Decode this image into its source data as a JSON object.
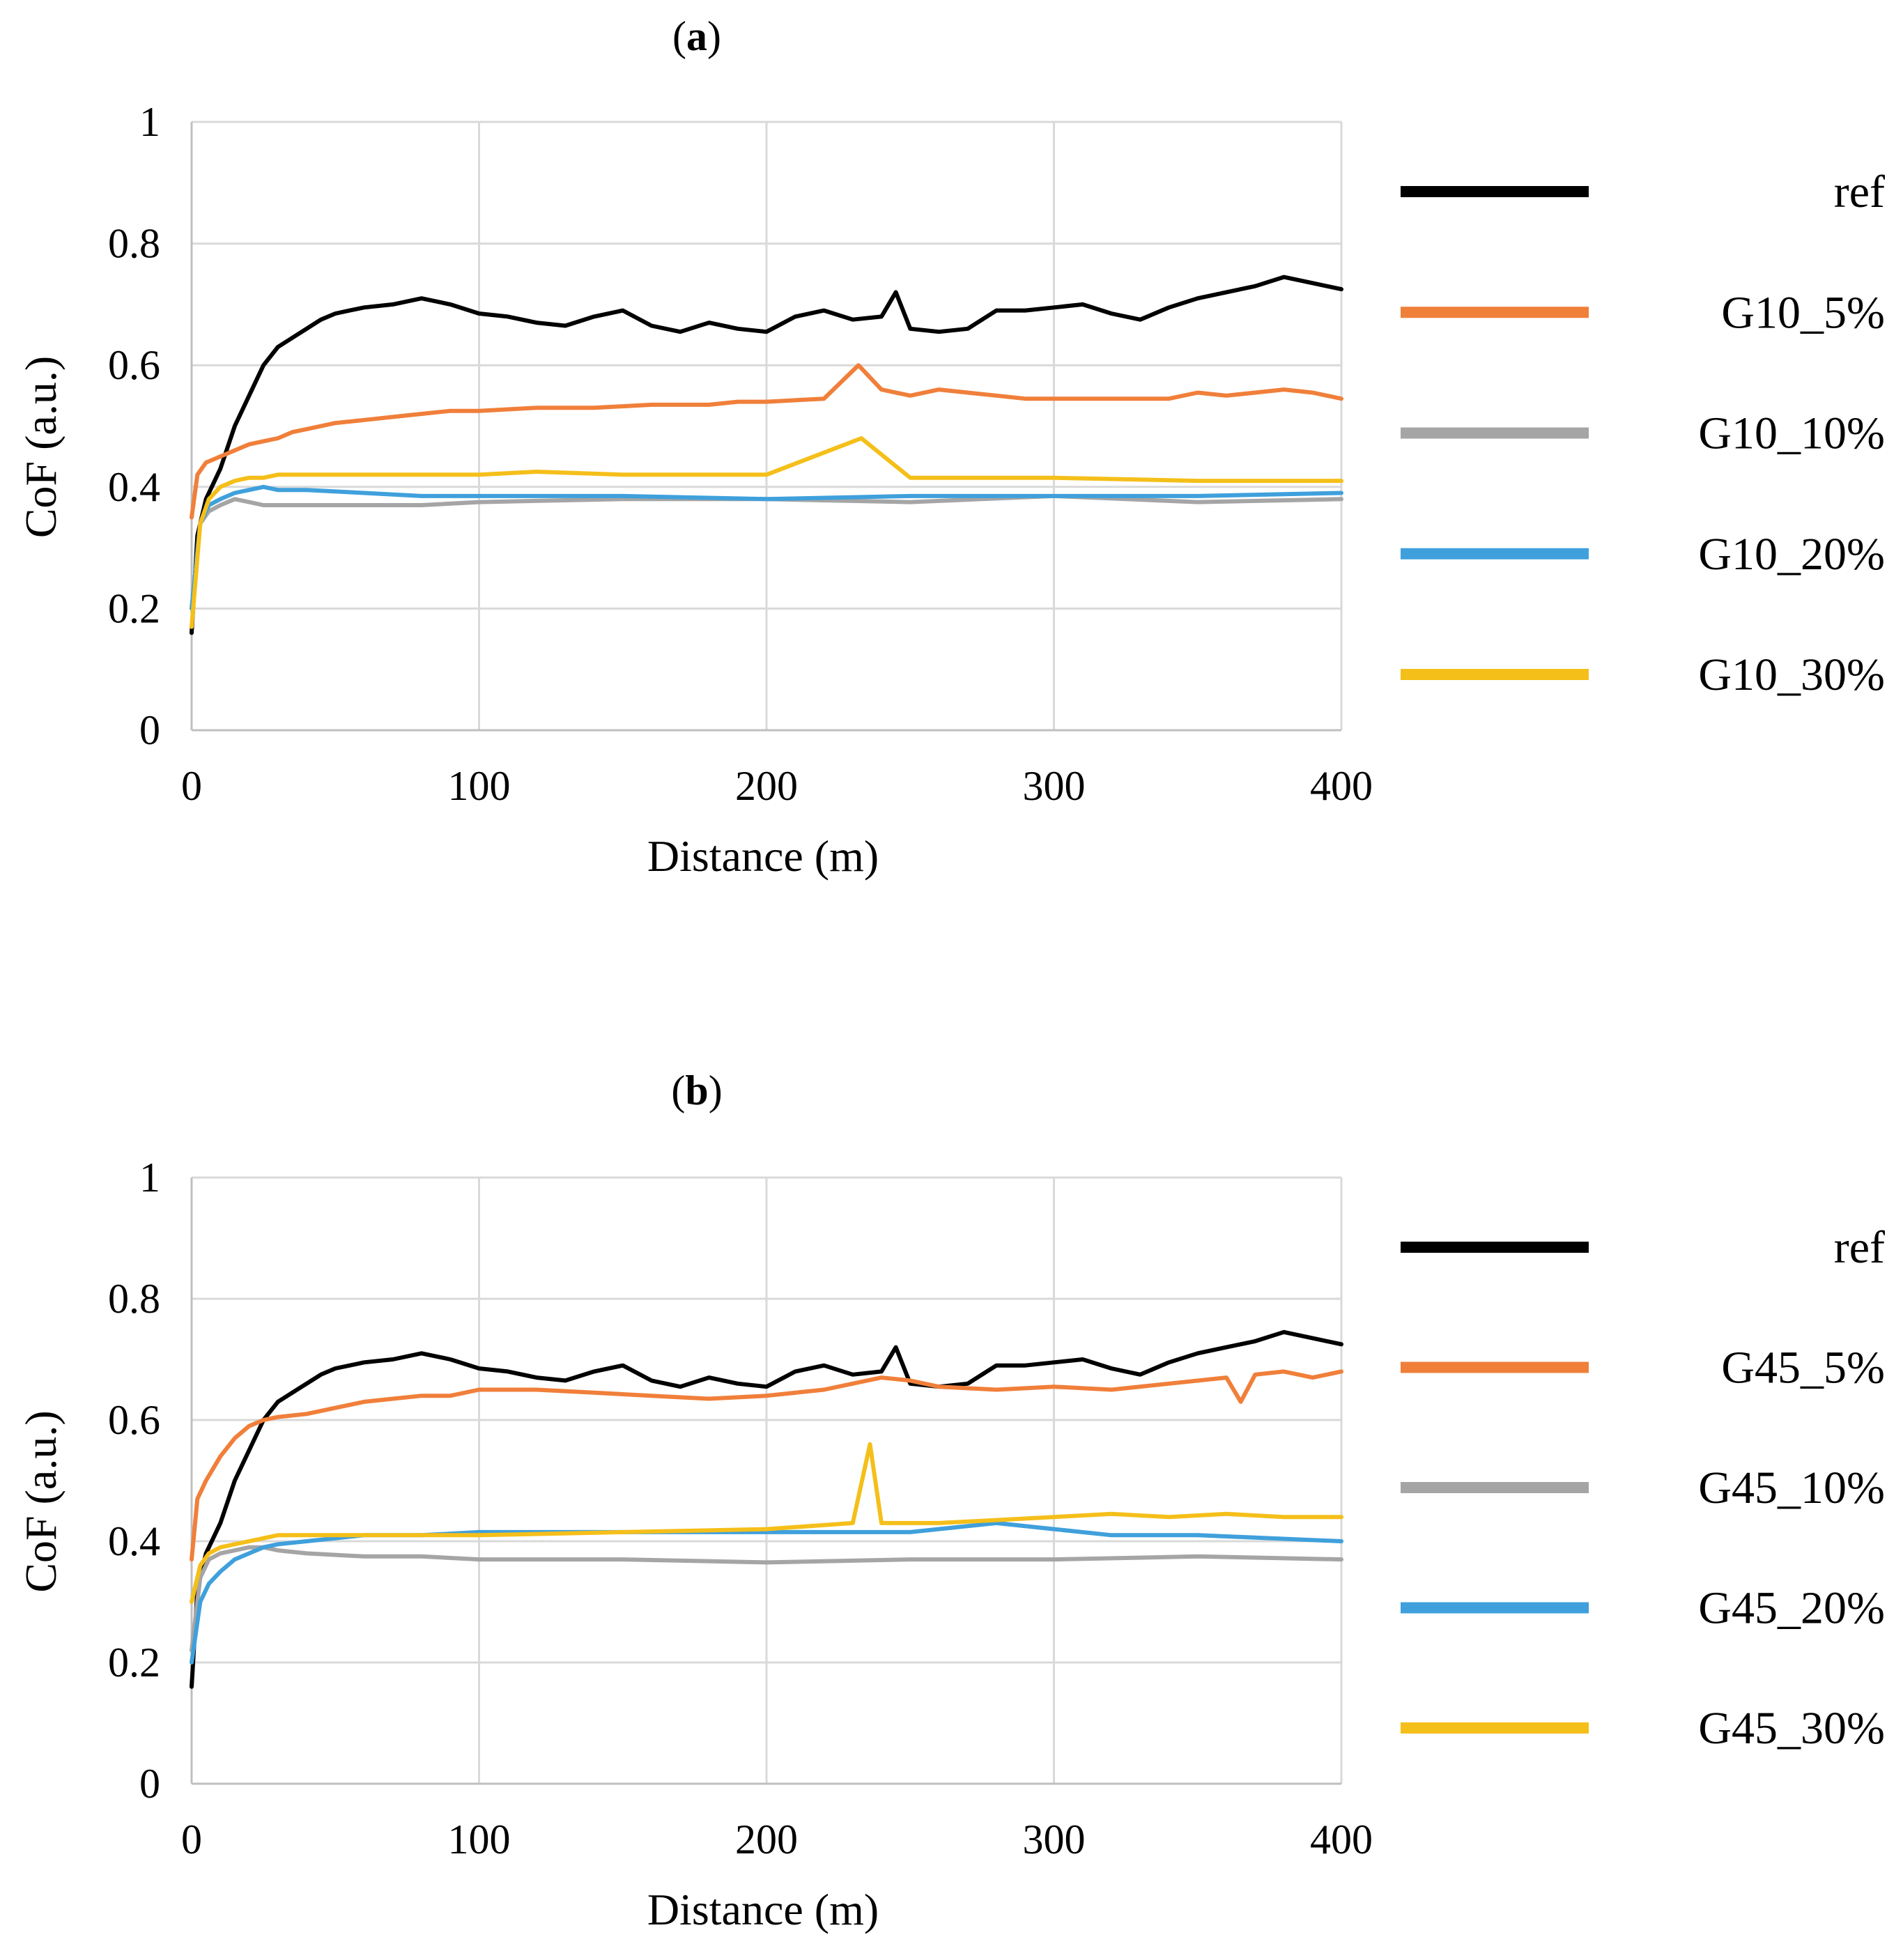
{
  "figure": {
    "panels": [
      "a",
      "b"
    ]
  },
  "chart_data": [
    {
      "type": "line",
      "panel_label": "a",
      "title_open": "(",
      "title_close": ")",
      "xlabel": "Distance (m)",
      "ylabel": "CoF (a.u.)",
      "xlim": [
        0,
        400
      ],
      "ylim": [
        0,
        1
      ],
      "xticks": [
        0,
        100,
        200,
        300,
        400
      ],
      "xtick_labels": [
        "0",
        "100",
        "200",
        "300",
        "400"
      ],
      "yticks": [
        0,
        0.2,
        0.4,
        0.6,
        0.8,
        1
      ],
      "ytick_labels": [
        "0",
        "0.2",
        "0.4",
        "0.6",
        "0.8",
        "1"
      ],
      "grid": true,
      "legend_position": "right",
      "series": [
        {
          "name": "ref",
          "color": "#000000",
          "x": [
            0,
            2,
            5,
            10,
            15,
            20,
            25,
            30,
            35,
            40,
            45,
            50,
            55,
            60,
            70,
            80,
            90,
            100,
            110,
            120,
            130,
            140,
            150,
            160,
            170,
            180,
            190,
            200,
            210,
            220,
            230,
            240,
            245,
            250,
            260,
            270,
            280,
            290,
            300,
            310,
            320,
            330,
            340,
            350,
            360,
            370,
            380,
            390,
            400
          ],
          "y": [
            0.16,
            0.32,
            0.38,
            0.43,
            0.5,
            0.55,
            0.6,
            0.63,
            0.645,
            0.66,
            0.675,
            0.685,
            0.69,
            0.695,
            0.7,
            0.71,
            0.7,
            0.685,
            0.68,
            0.67,
            0.665,
            0.68,
            0.69,
            0.665,
            0.655,
            0.67,
            0.66,
            0.655,
            0.68,
            0.69,
            0.675,
            0.68,
            0.72,
            0.66,
            0.655,
            0.66,
            0.69,
            0.69,
            0.695,
            0.7,
            0.685,
            0.675,
            0.695,
            0.71,
            0.72,
            0.73,
            0.745,
            0.735,
            0.725
          ]
        },
        {
          "name": "G10_5%",
          "color": "#f07f3a",
          "x": [
            0,
            2,
            5,
            10,
            15,
            20,
            25,
            30,
            35,
            40,
            50,
            60,
            70,
            80,
            90,
            100,
            120,
            140,
            160,
            180,
            190,
            200,
            220,
            232,
            240,
            250,
            260,
            270,
            280,
            290,
            300,
            320,
            340,
            350,
            360,
            370,
            380,
            390,
            400
          ],
          "y": [
            0.35,
            0.42,
            0.44,
            0.45,
            0.46,
            0.47,
            0.475,
            0.48,
            0.49,
            0.495,
            0.505,
            0.51,
            0.515,
            0.52,
            0.525,
            0.525,
            0.53,
            0.53,
            0.535,
            0.535,
            0.54,
            0.54,
            0.545,
            0.6,
            0.56,
            0.55,
            0.56,
            0.555,
            0.55,
            0.545,
            0.545,
            0.545,
            0.545,
            0.555,
            0.55,
            0.555,
            0.56,
            0.555,
            0.545
          ]
        },
        {
          "name": "G10_10%",
          "color": "#a5a5a5",
          "x": [
            0,
            3,
            6,
            10,
            15,
            20,
            25,
            30,
            40,
            60,
            80,
            100,
            150,
            200,
            250,
            300,
            350,
            400
          ],
          "y": [
            0.2,
            0.34,
            0.36,
            0.37,
            0.38,
            0.375,
            0.37,
            0.37,
            0.37,
            0.37,
            0.37,
            0.375,
            0.38,
            0.38,
            0.375,
            0.385,
            0.375,
            0.38
          ]
        },
        {
          "name": "G10_20%",
          "color": "#3fa0dc",
          "x": [
            0,
            3,
            6,
            10,
            15,
            20,
            25,
            30,
            40,
            60,
            80,
            100,
            150,
            200,
            250,
            300,
            350,
            400
          ],
          "y": [
            0.2,
            0.34,
            0.37,
            0.38,
            0.39,
            0.395,
            0.4,
            0.395,
            0.395,
            0.39,
            0.385,
            0.385,
            0.385,
            0.38,
            0.385,
            0.385,
            0.385,
            0.39
          ]
        },
        {
          "name": "G10_30%",
          "color": "#f5bf1a",
          "x": [
            0,
            3,
            6,
            10,
            15,
            20,
            25,
            30,
            40,
            60,
            80,
            100,
            120,
            150,
            200,
            233,
            250,
            300,
            350,
            400
          ],
          "y": [
            0.17,
            0.34,
            0.38,
            0.4,
            0.41,
            0.415,
            0.415,
            0.42,
            0.42,
            0.42,
            0.42,
            0.42,
            0.425,
            0.42,
            0.42,
            0.48,
            0.415,
            0.415,
            0.41,
            0.41
          ]
        }
      ]
    },
    {
      "type": "line",
      "panel_label": "b",
      "title_open": "(",
      "title_close": ")",
      "xlabel": "Distance (m)",
      "ylabel": "CoF (a.u.)",
      "xlim": [
        0,
        400
      ],
      "ylim": [
        0,
        1
      ],
      "xticks": [
        0,
        100,
        200,
        300,
        400
      ],
      "xtick_labels": [
        "0",
        "100",
        "200",
        "300",
        "400"
      ],
      "yticks": [
        0,
        0.2,
        0.4,
        0.6,
        0.8,
        1
      ],
      "ytick_labels": [
        "0",
        "0.2",
        "0.4",
        "0.6",
        "0.8",
        "1"
      ],
      "grid": true,
      "legend_position": "right",
      "series": [
        {
          "name": "ref",
          "color": "#000000",
          "x": [
            0,
            2,
            5,
            10,
            15,
            20,
            25,
            30,
            35,
            40,
            45,
            50,
            55,
            60,
            70,
            80,
            90,
            100,
            110,
            120,
            130,
            140,
            150,
            160,
            170,
            180,
            190,
            200,
            210,
            220,
            230,
            240,
            245,
            250,
            260,
            270,
            280,
            290,
            300,
            310,
            320,
            330,
            340,
            350,
            360,
            370,
            380,
            390,
            400
          ],
          "y": [
            0.16,
            0.32,
            0.38,
            0.43,
            0.5,
            0.55,
            0.6,
            0.63,
            0.645,
            0.66,
            0.675,
            0.685,
            0.69,
            0.695,
            0.7,
            0.71,
            0.7,
            0.685,
            0.68,
            0.67,
            0.665,
            0.68,
            0.69,
            0.665,
            0.655,
            0.67,
            0.66,
            0.655,
            0.68,
            0.69,
            0.675,
            0.68,
            0.72,
            0.66,
            0.655,
            0.66,
            0.69,
            0.69,
            0.695,
            0.7,
            0.685,
            0.675,
            0.695,
            0.71,
            0.72,
            0.73,
            0.745,
            0.735,
            0.725
          ]
        },
        {
          "name": "G45_5%",
          "color": "#f07f3a",
          "x": [
            0,
            2,
            5,
            10,
            15,
            20,
            25,
            30,
            40,
            50,
            60,
            70,
            80,
            90,
            100,
            120,
            140,
            160,
            180,
            200,
            220,
            240,
            250,
            260,
            280,
            300,
            320,
            340,
            360,
            365,
            370,
            380,
            390,
            400
          ],
          "y": [
            0.37,
            0.47,
            0.5,
            0.54,
            0.57,
            0.59,
            0.6,
            0.605,
            0.61,
            0.62,
            0.63,
            0.635,
            0.64,
            0.64,
            0.65,
            0.65,
            0.645,
            0.64,
            0.635,
            0.64,
            0.65,
            0.67,
            0.665,
            0.655,
            0.65,
            0.655,
            0.65,
            0.66,
            0.67,
            0.63,
            0.675,
            0.68,
            0.67,
            0.68
          ]
        },
        {
          "name": "G45_10%",
          "color": "#a5a5a5",
          "x": [
            0,
            3,
            6,
            10,
            15,
            20,
            25,
            30,
            40,
            60,
            80,
            100,
            150,
            200,
            250,
            300,
            350,
            400
          ],
          "y": [
            0.22,
            0.34,
            0.37,
            0.38,
            0.385,
            0.39,
            0.39,
            0.385,
            0.38,
            0.375,
            0.375,
            0.37,
            0.37,
            0.365,
            0.37,
            0.37,
            0.375,
            0.37
          ]
        },
        {
          "name": "G45_20%",
          "color": "#3fa0dc",
          "x": [
            0,
            3,
            6,
            10,
            15,
            20,
            25,
            30,
            40,
            60,
            80,
            100,
            150,
            200,
            250,
            280,
            300,
            320,
            350,
            400
          ],
          "y": [
            0.2,
            0.3,
            0.33,
            0.35,
            0.37,
            0.38,
            0.39,
            0.395,
            0.4,
            0.41,
            0.41,
            0.415,
            0.415,
            0.415,
            0.415,
            0.43,
            0.42,
            0.41,
            0.41,
            0.4
          ]
        },
        {
          "name": "G45_30%",
          "color": "#f5bf1a",
          "x": [
            0,
            3,
            6,
            10,
            15,
            20,
            25,
            30,
            40,
            60,
            80,
            100,
            150,
            200,
            230,
            236,
            240,
            260,
            280,
            300,
            320,
            340,
            360,
            380,
            400
          ],
          "y": [
            0.3,
            0.36,
            0.38,
            0.39,
            0.395,
            0.4,
            0.405,
            0.41,
            0.41,
            0.41,
            0.41,
            0.41,
            0.415,
            0.42,
            0.43,
            0.56,
            0.43,
            0.43,
            0.435,
            0.44,
            0.445,
            0.44,
            0.445,
            0.44,
            0.44
          ]
        }
      ]
    }
  ]
}
